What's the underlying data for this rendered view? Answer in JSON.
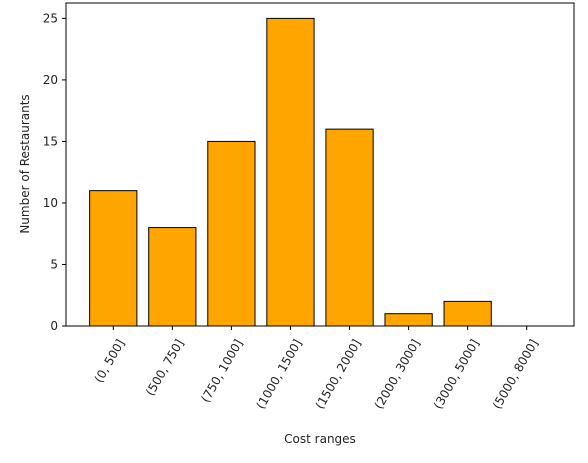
{
  "chart_data": {
    "type": "bar",
    "title": "",
    "xlabel": "Cost ranges",
    "ylabel": "Number of Restaurants",
    "categories": [
      "(0, 500]",
      "(500, 750]",
      "(750, 1000]",
      "(1000, 1500]",
      "(1500, 2000]",
      "(2000, 3000]",
      "(3000, 5000]",
      "(5000, 8000]"
    ],
    "values": [
      11,
      8,
      15,
      25,
      16,
      1,
      2,
      0
    ],
    "ylim": [
      0,
      26.25
    ],
    "yticks": [
      0,
      5,
      10,
      15,
      20,
      25
    ],
    "grid": false,
    "bar_color": "#ffa500",
    "edge_color": "#000000"
  }
}
